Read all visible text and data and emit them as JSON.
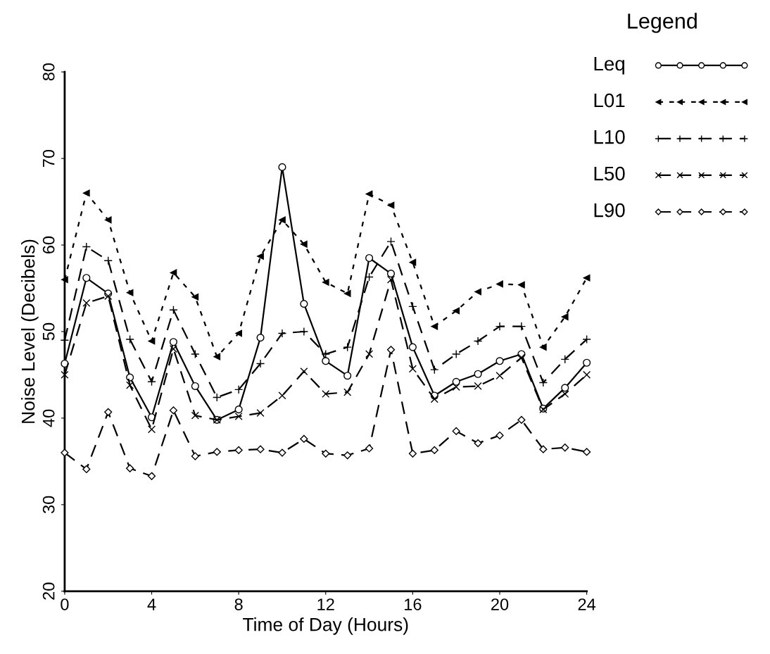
{
  "chart_data": {
    "type": "line",
    "xlabel": "Time of Day (Hours)",
    "ylabel": "Noise Level (Decibels)",
    "legend_title": "Legend",
    "legend": "top right",
    "grid": false,
    "x": [
      0,
      1,
      2,
      3,
      4,
      5,
      6,
      7,
      8,
      9,
      10,
      11,
      12,
      13,
      14,
      15,
      16,
      17,
      18,
      19,
      20,
      21,
      22,
      23,
      24
    ],
    "xlim": [
      0,
      24
    ],
    "xticks": [
      0,
      4,
      8,
      12,
      16,
      20,
      24
    ],
    "ylim": [
      20,
      80
    ],
    "yticks": [
      20,
      30,
      40,
      50,
      60,
      70,
      80
    ],
    "series": [
      {
        "name": "Leq",
        "color": "#000000",
        "marker": "circle",
        "line_style": "solid",
        "values": [
          46.3,
          56.2,
          54.4,
          44.7,
          40.1,
          48.8,
          43.7,
          39.8,
          41.0,
          49.3,
          69.0,
          53.2,
          46.6,
          44.9,
          58.5,
          56.7,
          48.2,
          42.6,
          44.2,
          45.1,
          46.6,
          47.4,
          41.1,
          43.5,
          46.4
        ]
      },
      {
        "name": "L01",
        "color": "#000000",
        "marker": "triangle",
        "line_style": "dotted",
        "values": [
          56.0,
          66.0,
          62.9,
          54.5,
          48.9,
          56.8,
          54.0,
          47.1,
          49.8,
          58.7,
          62.9,
          60.1,
          55.7,
          54.4,
          65.9,
          64.6,
          58.0,
          50.6,
          52.4,
          54.6,
          55.5,
          55.4,
          48.2,
          51.7,
          56.2
        ]
      },
      {
        "name": "L10",
        "color": "#000000",
        "marker": "cross",
        "line_style": "dashed",
        "values": [
          49.0,
          59.8,
          58.2,
          49.1,
          44.2,
          52.5,
          47.4,
          42.4,
          43.3,
          46.3,
          49.8,
          50.0,
          47.4,
          48.2,
          56.3,
          60.4,
          52.9,
          45.6,
          47.4,
          48.9,
          50.6,
          50.6,
          44.1,
          46.8,
          49.1
        ]
      },
      {
        "name": "L50",
        "color": "#000000",
        "marker": "x",
        "line_style": "dashed",
        "values": [
          45.0,
          53.3,
          54.1,
          43.8,
          38.7,
          48.0,
          40.3,
          39.8,
          40.2,
          40.6,
          42.6,
          45.4,
          42.8,
          43.0,
          47.4,
          56.0,
          45.7,
          42.2,
          43.6,
          43.7,
          44.9,
          47.0,
          41.0,
          42.8,
          45.0
        ]
      },
      {
        "name": "L90",
        "color": "#000000",
        "marker": "diamond",
        "line_style": "dashed",
        "values": [
          36.0,
          34.1,
          40.7,
          34.2,
          33.3,
          40.9,
          35.6,
          36.1,
          36.3,
          36.4,
          36.0,
          37.6,
          35.9,
          35.7,
          36.5,
          47.9,
          35.9,
          36.3,
          38.5,
          37.1,
          38.0,
          39.8,
          36.4,
          36.6,
          36.1
        ]
      }
    ]
  }
}
